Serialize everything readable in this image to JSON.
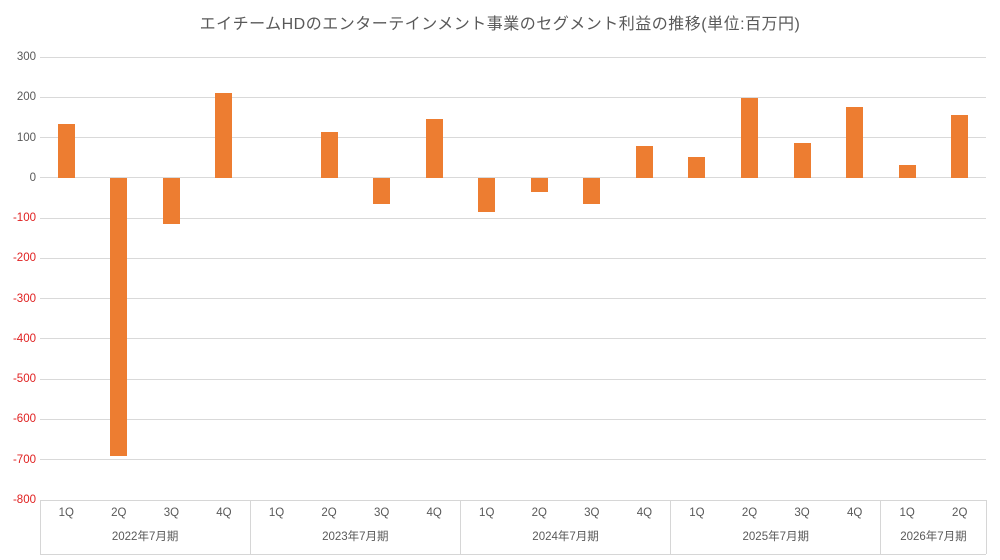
{
  "chart_data": {
    "type": "bar",
    "title": "エイチームHDのエンターテインメント事業のセグメント利益の推移(単位:百万円)",
    "xlabel": "",
    "ylabel": "",
    "unit": "百万円",
    "ylim": [
      -800,
      300
    ],
    "ytick_step": 100,
    "yticks": [
      300,
      200,
      100,
      0,
      -100,
      -200,
      -300,
      -400,
      -500,
      -600,
      -700,
      -800
    ],
    "grid": true,
    "legend": false,
    "groups": [
      {
        "year_label": "2022年7月期",
        "categories": [
          "1Q",
          "2Q",
          "3Q",
          "4Q"
        ],
        "values": [
          133,
          -690,
          -115,
          210
        ]
      },
      {
        "year_label": "2023年7月期",
        "categories": [
          "1Q",
          "2Q",
          "3Q",
          "4Q"
        ],
        "values": [
          0,
          114,
          -66,
          147
        ]
      },
      {
        "year_label": "2024年7月期",
        "categories": [
          "1Q",
          "2Q",
          "3Q",
          "4Q"
        ],
        "values": [
          -86,
          -36,
          -66,
          80
        ]
      },
      {
        "year_label": "2025年7月期",
        "categories": [
          "1Q",
          "2Q",
          "3Q",
          "4Q"
        ],
        "values": [
          52,
          197,
          87,
          177
        ]
      },
      {
        "year_label": "2026年7月期",
        "categories": [
          "1Q",
          "2Q"
        ],
        "values": [
          33,
          157
        ]
      }
    ],
    "colors": {
      "bar": "#ED7D31",
      "gridline": "#D9D9D9",
      "axis_line": "#D6D6D6",
      "text": "#595959",
      "negative_tick_text": "#E02020",
      "background": "#FFFFFF"
    }
  }
}
